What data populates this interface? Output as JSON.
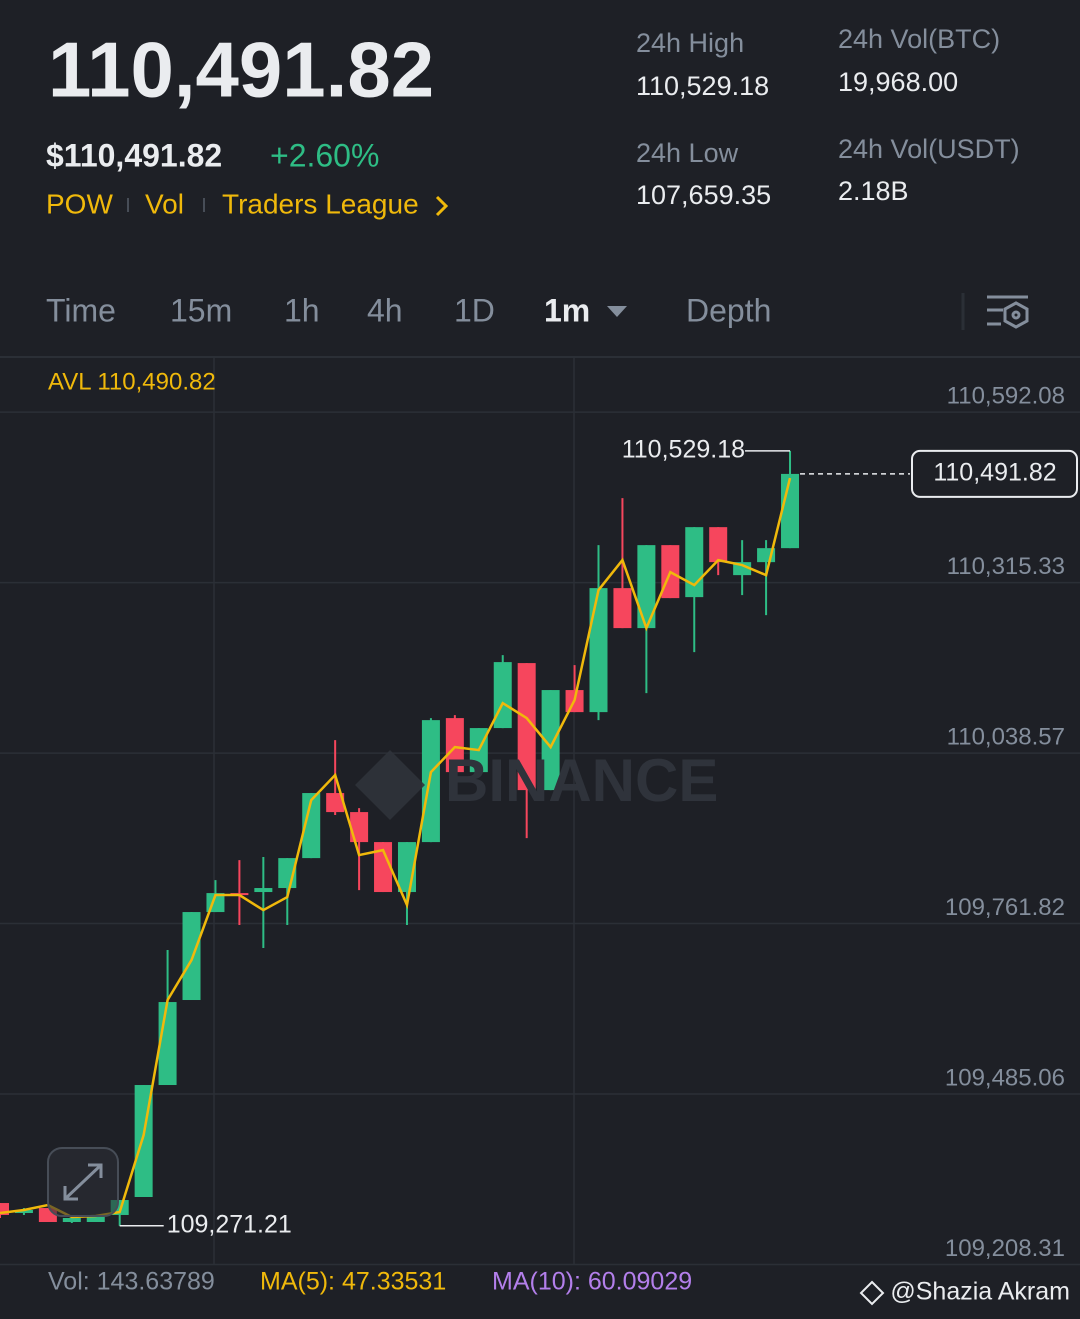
{
  "header": {
    "price": "110,491.82",
    "price_usd": "$110,491.82",
    "change": "+2.60%",
    "links": [
      "POW",
      "Vol",
      "Traders League"
    ]
  },
  "stats": [
    {
      "label": "24h High",
      "value": "110,529.18"
    },
    {
      "label": "24h Vol(BTC)",
      "value": "19,968.00"
    },
    {
      "label": "24h Low",
      "value": "107,659.35"
    },
    {
      "label": "24h Vol(USDT)",
      "value": "2.18B"
    }
  ],
  "tabs": [
    "Time",
    "15m",
    "1h",
    "4h",
    "1D",
    "1m",
    "Depth"
  ],
  "chart_data": {
    "type": "candlestick",
    "avl_label": "AVL 110,490.82",
    "watermark": "BINANCE",
    "open": [
      109308.1,
      109291.9,
      109300.0,
      109277.3,
      109277.3,
      109288.7,
      109317.9,
      109499.7,
      109637.7,
      109780.5,
      109811.3,
      109813.0,
      109819.5,
      109868.1,
      109973.7,
      109942.8,
      109894.1,
      109813.0,
      109894.1,
      110095.4,
      110007.7,
      110079.2,
      110184.7,
      109978.5,
      110140.9,
      110105.1,
      110306.4,
      110241.5,
      110376.2,
      110291.8,
      110405.4,
      110327.5,
      110348.6,
      110371.3
    ],
    "high": [
      109308.1,
      109300.0,
      109300.0,
      109283.8,
      109288.7,
      109313.0,
      109499.7,
      109718.8,
      109780.5,
      109832.4,
      109864.9,
      109869.8,
      109868.1,
      109973.7,
      110059.7,
      109949.3,
      109894.1,
      109894.1,
      110095.4,
      110100.3,
      110079.2,
      110197.7,
      110184.7,
      110140.9,
      110181.4,
      110376.2,
      110452.5,
      110376.2,
      110376.2,
      110405.4,
      110405.4,
      110384.3,
      110384.3,
      110529.18
    ],
    "low": [
      109283.8,
      109288.7,
      109277.3,
      109275.7,
      109277.3,
      109271.21,
      109317.9,
      109499.7,
      109637.7,
      109780.5,
      109759.4,
      109722.1,
      109759.4,
      109868.1,
      109938.0,
      109816.2,
      109813.0,
      109759.4,
      109894.1,
      109994.8,
      110007.7,
      110079.2,
      109900.6,
      109978.5,
      110105.1,
      110092.1,
      110241.5,
      110136.0,
      110290.2,
      110202.5,
      110327.5,
      110295.1,
      110262.6,
      110371.3
    ],
    "close": [
      109288.7,
      109296.8,
      109277.3,
      109283.8,
      109288.7,
      109313.0,
      109499.7,
      109634.4,
      109780.5,
      109811.3,
      109808.1,
      109819.5,
      109868.1,
      109973.7,
      109942.8,
      109894.1,
      109813.0,
      109894.1,
      110092.1,
      110007.7,
      110079.2,
      110186.3,
      109978.5,
      110140.9,
      110105.1,
      110306.4,
      110241.5,
      110376.2,
      110290.2,
      110405.4,
      110348.6,
      110348.6,
      110371.3,
      110491.82
    ],
    "avl": [
      109291.9,
      109296.8,
      109304.9,
      109285.4,
      109287.0,
      109293.5,
      109418.5,
      109637.7,
      109702.6,
      109808.1,
      109808.1,
      109783.7,
      109804.8,
      109962.3,
      110002.9,
      109873.0,
      109881.1,
      109791.9,
      110007.7,
      110048.3,
      110043.5,
      110119.7,
      110095.4,
      110048.3,
      110124.6,
      110303.2,
      110351.9,
      110241.5,
      110332.4,
      110311.3,
      110351.9,
      110343.8,
      110327.5,
      110485.0
    ],
    "ylim": [
      109208.31,
      110680.0
    ],
    "yticks": [
      {
        "value": 110592.08,
        "label": "110,592.08"
      },
      {
        "value": 110315.33,
        "label": "110,315.33"
      },
      {
        "value": 110038.57,
        "label": "110,038.57"
      },
      {
        "value": 109761.82,
        "label": "109,761.82"
      },
      {
        "value": 109485.06,
        "label": "109,485.06"
      },
      {
        "value": 109208.31,
        "label": "109,208.31"
      }
    ],
    "grid": true,
    "annotations": {
      "high": "110,529.18",
      "low": "109,271.21",
      "last": "110,491.82"
    },
    "colors": {
      "up": "#2ebd85",
      "down": "#f6465d",
      "avl": "#f0b90b"
    }
  },
  "indicators": {
    "vol": "Vol: 143.63789",
    "ma5": "MA(5): 47.33531",
    "ma10": "MA(10): 60.09029"
  },
  "credit": "@Shazia Akram"
}
